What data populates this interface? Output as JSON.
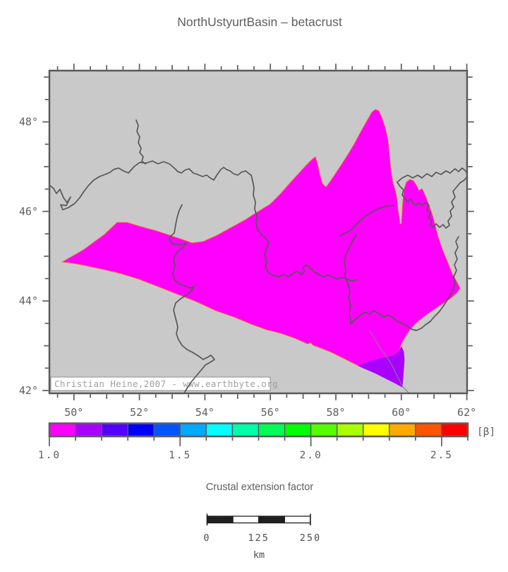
{
  "title": "NorthUstyurtBasin – betacrust",
  "map": {
    "watermark": "Christian Heine,2007 - www.earthbyte.org",
    "axis": {
      "bottom_labels": [
        {
          "value": 50,
          "label": "50°"
        },
        {
          "value": 52,
          "label": "52°"
        },
        {
          "value": 54,
          "label": "54°"
        },
        {
          "value": 56,
          "label": "56°"
        },
        {
          "value": 58,
          "label": "58°"
        },
        {
          "value": 60,
          "label": "60°"
        },
        {
          "value": 62,
          "label": "62°"
        }
      ],
      "left_labels": [
        {
          "value": 48,
          "label": "48°"
        },
        {
          "value": 46,
          "label": "46°"
        },
        {
          "value": 44,
          "label": "44°"
        },
        {
          "value": 42,
          "label": "42°"
        }
      ]
    }
  },
  "colorbar": {
    "caption": "Crustal extension factor",
    "unit_label": "[β]",
    "range_min": 1.0,
    "range_max": 2.6,
    "major_ticks": [
      {
        "value": 1.0,
        "label": "1.0"
      },
      {
        "value": 1.5,
        "label": "1.5"
      },
      {
        "value": 2.0,
        "label": "2.0"
      },
      {
        "value": 2.5,
        "label": "2.5"
      }
    ],
    "segment_step": 0.1,
    "segment_colors": [
      "#ff00ff",
      "#aa00ff",
      "#5500ff",
      "#0000ff",
      "#0055ff",
      "#00aaff",
      "#00ffff",
      "#00ffaa",
      "#00ff55",
      "#00ff00",
      "#55ff00",
      "#aaff00",
      "#ffff00",
      "#ffaa00",
      "#ff5500",
      "#ff0000"
    ]
  },
  "scalebar": {
    "tick_labels": [
      "0",
      "125",
      "250"
    ],
    "unit_label": "km",
    "total_km": 250
  },
  "colors": {
    "map_bg": "#c9c9c9",
    "frame": "#5a5a5a",
    "axis_text": "#5f5f5f",
    "coast_line": "#575757",
    "thin_border": "#808080",
    "region_fill": "#ff00ff",
    "region_low_fill": "#aa00ff",
    "region_fringe": "#ff6600",
    "watermark_text": "#a0a0a0",
    "watermark_border": "#909090",
    "scalebar_dark": "#1f1f1f",
    "scalebar_text": "#4d4d4d"
  }
}
